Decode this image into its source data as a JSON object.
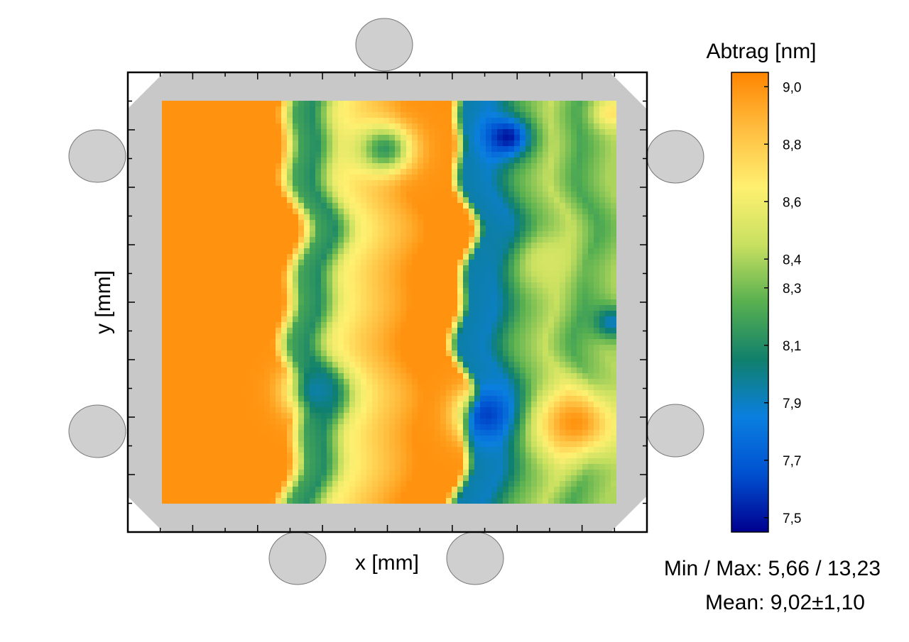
{
  "chart_data": {
    "type": "heatmap",
    "title": "",
    "xlabel": "x [mm]",
    "ylabel": "y [mm]",
    "colorbar": {
      "title": "Abtrag [nm]",
      "range": [
        7.45,
        9.05
      ],
      "ticks": [
        "9,0",
        "8,8",
        "8,6",
        "8,4",
        "8,3",
        "8,1",
        "7,9",
        "7,7",
        "7,5"
      ],
      "tick_values": [
        9.0,
        8.8,
        8.6,
        8.4,
        8.3,
        8.1,
        7.9,
        7.7,
        7.5
      ],
      "colormap": [
        "#00008f",
        "#0050d0",
        "#0a7fe0",
        "#10806c",
        "#58b050",
        "#c8e060",
        "#fff070",
        "#ffbe40",
        "#ff8500"
      ]
    },
    "grid": false,
    "map_columns": [
      {
        "x_frac": 0.0,
        "value": 9.0
      },
      {
        "x_frac": 0.27,
        "value": 9.0
      },
      {
        "x_frac": 0.31,
        "value": 8.2
      },
      {
        "x_frac": 0.35,
        "value": 8.1
      },
      {
        "x_frac": 0.4,
        "value": 8.6
      },
      {
        "x_frac": 0.47,
        "value": 8.8
      },
      {
        "x_frac": 0.55,
        "value": 9.0
      },
      {
        "x_frac": 0.65,
        "value": 9.0
      },
      {
        "x_frac": 0.68,
        "value": 7.95
      },
      {
        "x_frac": 0.74,
        "value": 7.9
      },
      {
        "x_frac": 0.8,
        "value": 8.25
      },
      {
        "x_frac": 0.87,
        "value": 8.45
      },
      {
        "x_frac": 0.93,
        "value": 8.2
      },
      {
        "x_frac": 1.0,
        "value": 8.4
      }
    ],
    "map_spots": [
      {
        "x_frac": 0.49,
        "y_frac": 0.12,
        "value": 8.15,
        "spread": 0.06
      },
      {
        "x_frac": 0.76,
        "y_frac": 0.09,
        "value": 7.5,
        "spread": 0.05
      },
      {
        "x_frac": 0.34,
        "y_frac": 0.72,
        "value": 7.95,
        "spread": 0.06
      },
      {
        "x_frac": 0.72,
        "y_frac": 0.78,
        "value": 7.6,
        "spread": 0.06
      },
      {
        "x_frac": 0.91,
        "y_frac": 0.8,
        "value": 9.0,
        "spread": 0.09
      },
      {
        "x_frac": 0.85,
        "y_frac": 0.4,
        "value": 8.5,
        "spread": 0.07
      },
      {
        "x_frac": 0.99,
        "y_frac": 0.55,
        "value": 7.9,
        "spread": 0.04
      },
      {
        "x_frac": 0.99,
        "y_frac": 0.03,
        "value": 8.7,
        "spread": 0.04
      }
    ]
  },
  "stats": {
    "minmax": "Min / Max: 5,66 / 13,23",
    "mean": "Mean: 9,02±1,10"
  },
  "colors": {
    "frame_gray": "#c8c8c8",
    "clamp_gray": "#cfcfcf"
  }
}
